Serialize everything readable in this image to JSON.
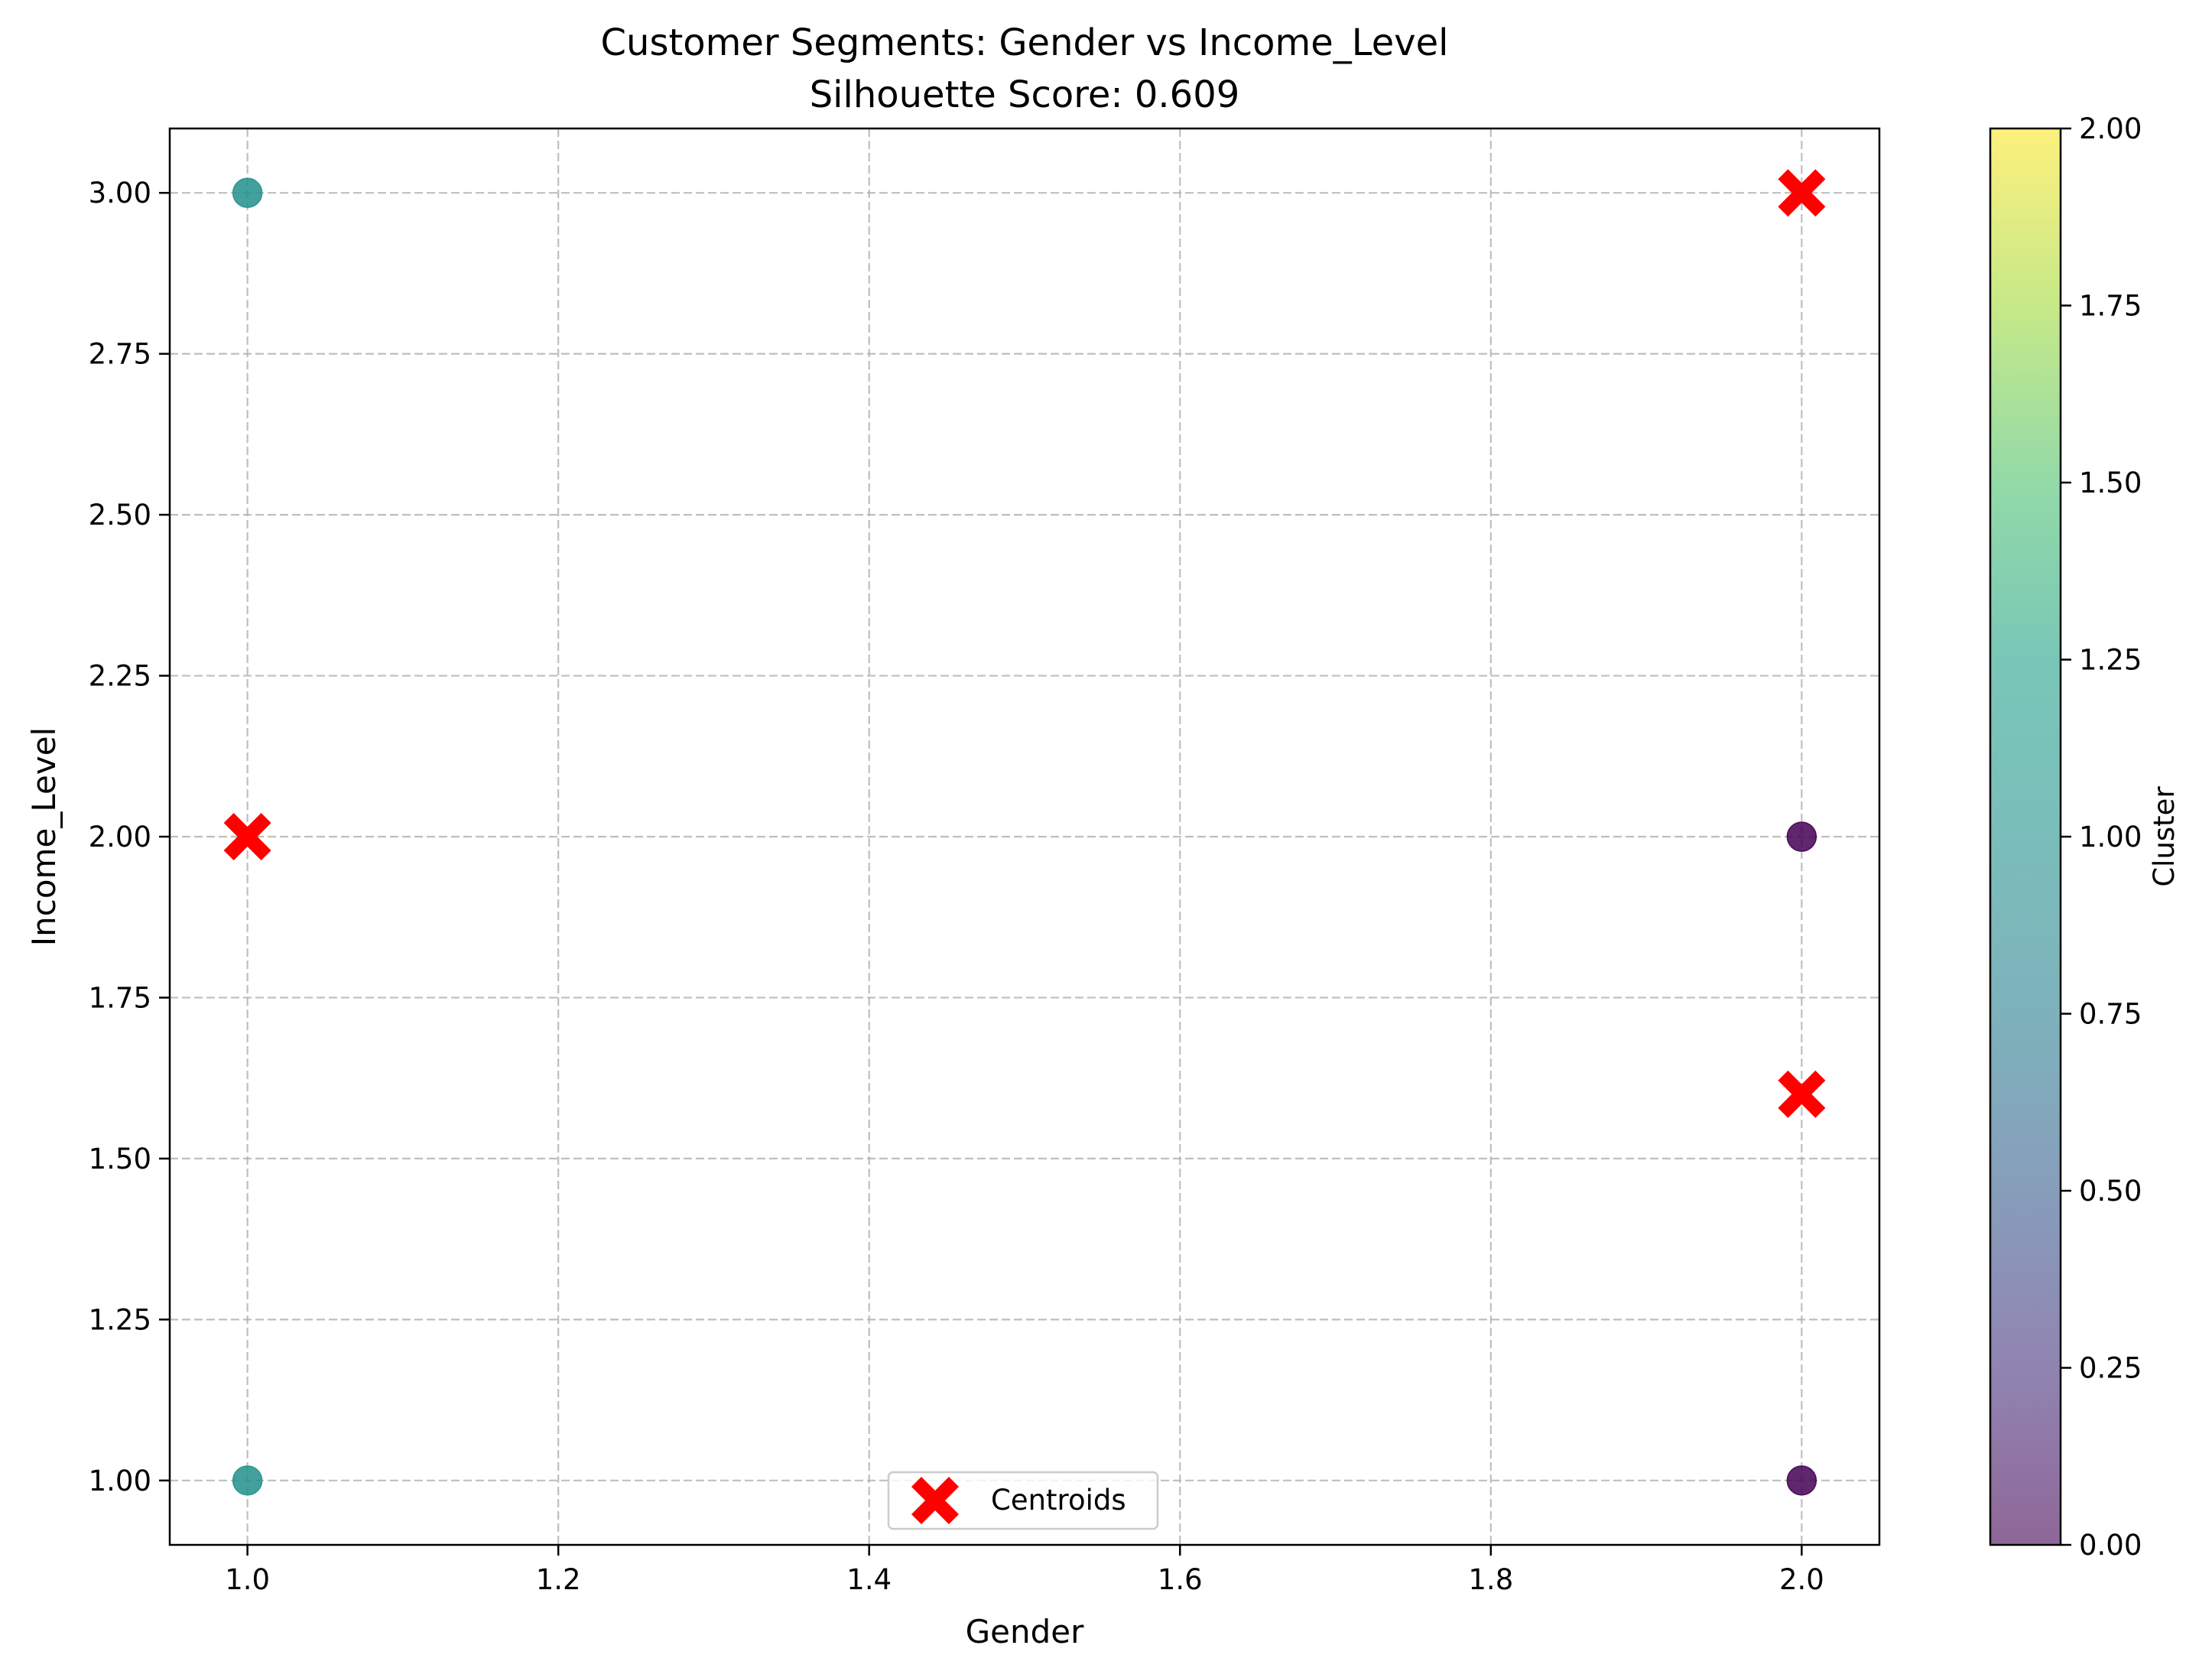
{
  "chart_data": {
    "type": "scatter",
    "title": "Customer Segments: Gender vs Income_Level",
    "subtitle": "Silhouette Score: 0.609",
    "xlabel": "Gender",
    "ylabel": "Income_Level",
    "xlim": [
      0.95,
      2.05
    ],
    "ylim": [
      0.9,
      3.1
    ],
    "xticks": [
      {
        "value": 1.0,
        "label": "1.0"
      },
      {
        "value": 1.2,
        "label": "1.2"
      },
      {
        "value": 1.4,
        "label": "1.4"
      },
      {
        "value": 1.6,
        "label": "1.6"
      },
      {
        "value": 1.8,
        "label": "1.8"
      },
      {
        "value": 2.0,
        "label": "2.0"
      }
    ],
    "yticks": [
      {
        "value": 1.0,
        "label": "1.00"
      },
      {
        "value": 1.25,
        "label": "1.25"
      },
      {
        "value": 1.5,
        "label": "1.50"
      },
      {
        "value": 1.75,
        "label": "1.75"
      },
      {
        "value": 2.0,
        "label": "2.00"
      },
      {
        "value": 2.25,
        "label": "2.25"
      },
      {
        "value": 2.5,
        "label": "2.50"
      },
      {
        "value": 2.75,
        "label": "2.75"
      },
      {
        "value": 3.0,
        "label": "3.00"
      }
    ],
    "grid": true,
    "points": [
      {
        "x": 1.0,
        "y": 3.0,
        "cluster": 1
      },
      {
        "x": 1.0,
        "y": 1.0,
        "cluster": 1
      },
      {
        "x": 2.0,
        "y": 2.0,
        "cluster": 0
      },
      {
        "x": 2.0,
        "y": 1.0,
        "cluster": 0
      }
    ],
    "centroids": {
      "name": "Centroids",
      "color": "#ff0000",
      "points": [
        {
          "x": 2.0,
          "y": 3.0
        },
        {
          "x": 1.0,
          "y": 2.0
        },
        {
          "x": 2.0,
          "y": 1.6
        }
      ]
    },
    "legend": {
      "placement": "lower center",
      "entries": [
        "Centroids"
      ]
    },
    "colorbar": {
      "label": "Cluster",
      "range": [
        0,
        2
      ],
      "colormap": "viridis",
      "alpha": 0.6,
      "ticks": [
        {
          "value": 0.0,
          "label": "0.00"
        },
        {
          "value": 0.25,
          "label": "0.25"
        },
        {
          "value": 0.5,
          "label": "0.50"
        },
        {
          "value": 0.75,
          "label": "0.75"
        },
        {
          "value": 1.0,
          "label": "1.00"
        },
        {
          "value": 1.25,
          "label": "1.25"
        },
        {
          "value": 1.5,
          "label": "1.50"
        },
        {
          "value": 1.75,
          "label": "1.75"
        },
        {
          "value": 2.0,
          "label": "2.00"
        }
      ]
    },
    "colors": {
      "cluster_0": "#440154",
      "cluster_1": "#21918c",
      "cluster_2": "#fde725",
      "centroid": "#ff0000"
    }
  }
}
